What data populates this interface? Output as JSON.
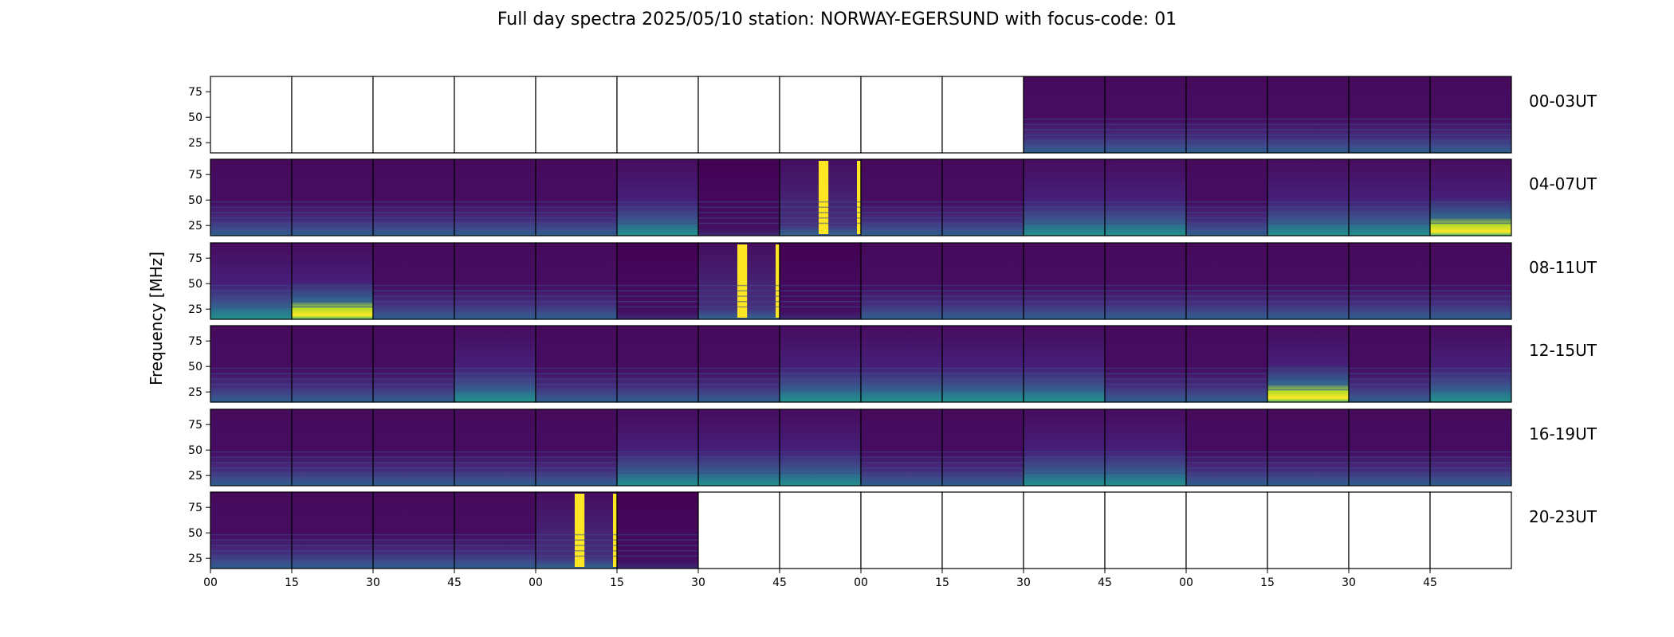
{
  "chart_data": {
    "type": "heatmap",
    "title": "Full day spectra 2025/05/10 station: NORWAY-EGERSUND with focus-code: 01",
    "ylabel": "Frequency [MHz]",
    "xlabel": "",
    "colormap": "viridis",
    "ylim": [
      15,
      90
    ],
    "yticks": [
      25,
      50,
      75
    ],
    "x_tick_labels": [
      "00",
      "15",
      "30",
      "45",
      "00",
      "15",
      "30",
      "45",
      "00",
      "15",
      "30",
      "45",
      "00",
      "15",
      "30",
      "45"
    ],
    "rows": [
      {
        "label": "00-03UT",
        "panels": [
          "empty",
          "empty",
          "empty",
          "empty",
          "empty",
          "empty",
          "empty",
          "empty",
          "empty",
          "empty",
          "low",
          "low",
          "low",
          "low",
          "low",
          "low"
        ]
      },
      {
        "label": "04-07UT",
        "panels": [
          "low",
          "low",
          "low",
          "low",
          "low",
          "mid",
          "dark",
          "yellow-band",
          "low",
          "low",
          "mid",
          "mid",
          "low",
          "mid",
          "mid",
          "high"
        ]
      },
      {
        "label": "08-11UT",
        "panels": [
          "mid",
          "high",
          "low",
          "low",
          "low",
          "dark",
          "yellow-band",
          "dark",
          "low",
          "low",
          "low",
          "low",
          "low",
          "low",
          "low",
          "low"
        ]
      },
      {
        "label": "12-15UT",
        "panels": [
          "low",
          "low",
          "low",
          "mid",
          "low",
          "low",
          "low",
          "mid",
          "mid",
          "mid",
          "mid",
          "low",
          "low",
          "high",
          "low",
          "mid"
        ]
      },
      {
        "label": "16-19UT",
        "panels": [
          "low",
          "low",
          "low",
          "low",
          "low",
          "mid",
          "mid",
          "mid",
          "low",
          "low",
          "mid",
          "mid",
          "low",
          "low",
          "low",
          "low"
        ]
      },
      {
        "label": "20-23UT",
        "panels": [
          "low",
          "low",
          "low",
          "low",
          "yellow-band",
          "dark",
          "empty",
          "empty",
          "empty",
          "empty",
          "empty",
          "empty",
          "empty",
          "empty",
          "empty",
          "empty"
        ]
      }
    ]
  }
}
